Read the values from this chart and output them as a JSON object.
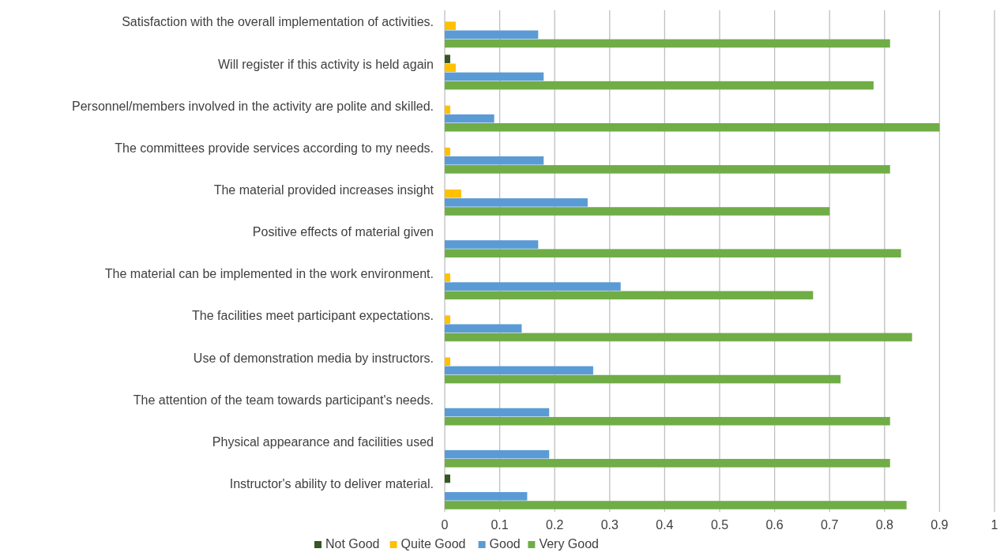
{
  "chart_data": {
    "type": "bar",
    "orientation": "horizontal",
    "categories": [
      "Satisfaction with the overall implementation of activities.",
      "Will register if this activity is held again",
      "Personnel/members involved in the activity are polite and skilled.",
      "The committees provide services according to my needs.",
      "The material provided increases insight",
      "Positive effects of material given",
      "The material can be implemented in the work environment.",
      "The facilities meet participant expectations.",
      "Use of demonstration media by instructors.",
      "The attention of the team towards participant's needs.",
      "Physical appearance and facilities used",
      "Instructor's ability to deliver material."
    ],
    "series": [
      {
        "name": "Not Good",
        "color": "#375623",
        "values": [
          null,
          0.01,
          null,
          null,
          null,
          null,
          null,
          null,
          null,
          null,
          null,
          0.01
        ]
      },
      {
        "name": "Quite Good",
        "color": "#ffc000",
        "values": [
          0.02,
          0.02,
          0.01,
          0.01,
          0.03,
          null,
          0.01,
          0.01,
          0.01,
          null,
          null,
          null
        ]
      },
      {
        "name": "Good",
        "color": "#5b9bd5",
        "values": [
          0.17,
          0.18,
          0.09,
          0.18,
          0.26,
          0.17,
          0.32,
          0.14,
          0.27,
          0.19,
          0.19,
          0.15
        ]
      },
      {
        "name": "Very Good",
        "color": "#70ad47",
        "values": [
          0.81,
          0.78,
          0.9,
          0.81,
          0.7,
          0.83,
          0.67,
          0.85,
          0.72,
          0.81,
          0.81,
          0.84
        ]
      }
    ],
    "xlim": [
      0,
      1
    ],
    "xticks": [
      0,
      0.1,
      0.2,
      0.3,
      0.4,
      0.5,
      0.6,
      0.7,
      0.8,
      0.9,
      1
    ],
    "grid": "x",
    "legend": "bottom"
  }
}
